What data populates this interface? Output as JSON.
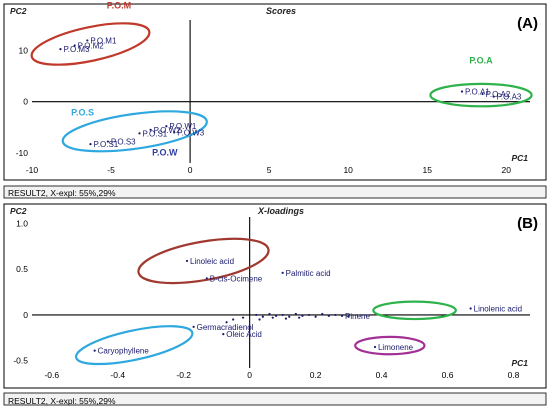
{
  "chart_data": [
    {
      "type": "scatter",
      "panel_label": "(A)",
      "title": "Scores",
      "ylabel": "PC2",
      "xlabel": "PC1",
      "footer": "RESULT2, X-expl: 55%,29%",
      "xlim": [
        -10,
        21.5
      ],
      "ylim": [
        -12,
        16
      ],
      "x_ticks": [
        -10,
        -5,
        0,
        5,
        10,
        15,
        20
      ],
      "y_ticks": [
        -10,
        0,
        10
      ],
      "points": [
        {
          "x": -6.5,
          "y": 12.0,
          "label": "P.O.M1"
        },
        {
          "x": -7.3,
          "y": 11.0,
          "label": "P.O.M2"
        },
        {
          "x": -8.2,
          "y": 10.3,
          "label": "P.O.M3"
        },
        {
          "x": -3.2,
          "y": -6.2,
          "label": "P.O.S1"
        },
        {
          "x": -5.2,
          "y": -7.8,
          "label": "P.O.S3"
        },
        {
          "x": -6.3,
          "y": -8.3,
          "label": "P.O.S1"
        },
        {
          "x": -1.5,
          "y": -4.8,
          "label": "P.O.W1"
        },
        {
          "x": -2.5,
          "y": -5.5,
          "label": "P.O.W2"
        },
        {
          "x": -1.0,
          "y": -6.0,
          "label": "P.O.W3"
        },
        {
          "x": 17.2,
          "y": 2.0,
          "label": "P.O.A1"
        },
        {
          "x": 18.5,
          "y": 1.5,
          "label": "P.O.A2"
        },
        {
          "x": 19.2,
          "y": 1.0,
          "label": "P.O.A3"
        }
      ],
      "groups": [
        {
          "name": "P.O.M",
          "color": "#c0392b",
          "cx": -6.3,
          "cy": 11.3,
          "rx": 3.8,
          "ry": 3.3,
          "rot": -12,
          "label_x": -4.5,
          "label_y": 18.3
        },
        {
          "name": "P.O.S",
          "color": "#2fa8e0",
          "cx": -3.5,
          "cy": -5.8,
          "rx": 4.6,
          "ry": 3.4,
          "rot": -8,
          "label_x": -6.8,
          "label_y": -2.7
        },
        {
          "name": "P.O.W",
          "color": "#2f3ea3",
          "cx": 0,
          "cy": 0,
          "rx": 0,
          "ry": 0,
          "rot": 0,
          "label_x": -1.6,
          "label_y": -10.5
        },
        {
          "name": "P.O.A",
          "color": "#2db34a",
          "cx": 18.4,
          "cy": 1.3,
          "rx": 3.2,
          "ry": 2.2,
          "rot": 0,
          "label_x": 18.4,
          "label_y": 7.5
        }
      ]
    },
    {
      "type": "scatter",
      "panel_label": "(B)",
      "title": "X-loadings",
      "ylabel": "PC2",
      "xlabel": "PC1",
      "footer": "RESULT2, X-expl: 55%,29%",
      "xlim": [
        -0.66,
        0.85
      ],
      "ylim": [
        -0.58,
        1.07
      ],
      "x_ticks": [
        -0.6,
        -0.4,
        -0.2,
        0,
        0.2,
        0.4,
        0.6,
        0.8
      ],
      "y_ticks": [
        -0.5,
        0,
        0.5,
        1.0
      ],
      "points": [
        {
          "x": -0.19,
          "y": 0.59,
          "label": "Linoleic acid"
        },
        {
          "x": -0.13,
          "y": 0.4,
          "label": "B-cis-Ocimene"
        },
        {
          "x": 0.1,
          "y": 0.46,
          "label": "Palmitic acid"
        },
        {
          "x": -0.47,
          "y": -0.39,
          "label": "Caryophyllene"
        },
        {
          "x": -0.17,
          "y": -0.13,
          "label": "Germacradienol"
        },
        {
          "x": -0.08,
          "y": -0.21,
          "label": "Oleic Acid"
        },
        {
          "x": 0.67,
          "y": 0.07,
          "label": "Linolenic acid"
        },
        {
          "x": 0.38,
          "y": -0.35,
          "label": "Limonene"
        },
        {
          "x": 0.28,
          "y": -0.01,
          "label": "Pinene"
        },
        {
          "x": 0.02,
          "y": 0.0,
          "label": ""
        },
        {
          "x": 0.04,
          "y": -0.02,
          "label": ""
        },
        {
          "x": 0.06,
          "y": 0.01,
          "label": ""
        },
        {
          "x": 0.08,
          "y": -0.01,
          "label": ""
        },
        {
          "x": 0.1,
          "y": 0.0,
          "label": ""
        },
        {
          "x": 0.12,
          "y": -0.02,
          "label": ""
        },
        {
          "x": 0.14,
          "y": 0.01,
          "label": ""
        },
        {
          "x": 0.16,
          "y": -0.01,
          "label": ""
        },
        {
          "x": 0.18,
          "y": 0.0,
          "label": ""
        },
        {
          "x": 0.2,
          "y": -0.02,
          "label": ""
        },
        {
          "x": 0.22,
          "y": 0.01,
          "label": ""
        },
        {
          "x": 0.24,
          "y": -0.01,
          "label": ""
        },
        {
          "x": 0.26,
          "y": 0.0,
          "label": ""
        },
        {
          "x": 0.3,
          "y": -0.02,
          "label": ""
        },
        {
          "x": -0.02,
          "y": -0.03,
          "label": ""
        },
        {
          "x": -0.05,
          "y": -0.05,
          "label": ""
        },
        {
          "x": -0.07,
          "y": -0.08,
          "label": ""
        },
        {
          "x": 0.03,
          "y": -0.05,
          "label": ""
        },
        {
          "x": 0.07,
          "y": -0.03,
          "label": ""
        },
        {
          "x": 0.11,
          "y": -0.04,
          "label": ""
        },
        {
          "x": 0.15,
          "y": -0.03,
          "label": ""
        }
      ],
      "circles": [
        {
          "color": "#a0392f",
          "cx": -0.14,
          "cy": 0.59,
          "rx": 0.2,
          "ry": 0.21,
          "rot": -10
        },
        {
          "color": "#2fa8e0",
          "cx": -0.35,
          "cy": -0.33,
          "rx": 0.18,
          "ry": 0.16,
          "rot": -12
        },
        {
          "color": "#2db34a",
          "cx": 0.5,
          "cy": 0.05,
          "rx": 0.125,
          "ry": 0.095,
          "rot": 0
        },
        {
          "color": "#a23196",
          "cx": 0.425,
          "cy": -0.335,
          "rx": 0.105,
          "ry": 0.095,
          "rot": 0
        }
      ]
    }
  ]
}
